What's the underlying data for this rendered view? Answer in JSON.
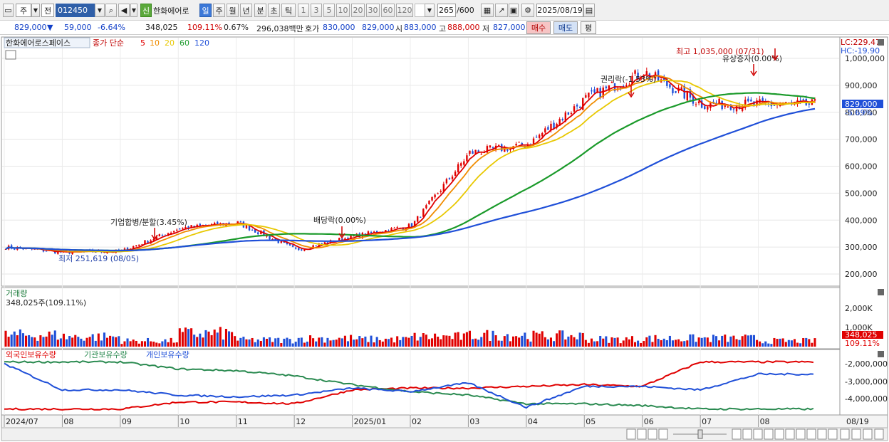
{
  "toolbar": {
    "market": "주",
    "prev": "전",
    "code": "012450",
    "badge": "신",
    "name": "한화에어로",
    "periods": [
      "일",
      "주",
      "월",
      "년",
      "분",
      "초",
      "틱"
    ],
    "intervals": [
      "1",
      "3",
      "5",
      "10",
      "20",
      "30",
      "60",
      "120"
    ],
    "count": "265",
    "count_max": "/600",
    "date": "2025/08/19"
  },
  "info": {
    "price": "829,000",
    "down_mark": "▼",
    "change": "59,000",
    "change_pct": "-6.64%",
    "volume": "348,025",
    "volume_ratio": "109.11%",
    "turnover": "0.67%",
    "amount": "296,038백만",
    "ask_label": "호가",
    "ask": "830,000",
    "bid": "829,000",
    "open_label": "시",
    "open": "883,000",
    "high_label": "고",
    "high": "888,000",
    "low_label": "저",
    "low": "827,000",
    "buy_label": "매수",
    "sell_label": "매도",
    "eval_label": "평"
  },
  "legend": {
    "stock_name": "한화에어로스페이스",
    "series_label": "종가 단순",
    "ma": [
      {
        "name": "5",
        "color": "#e00000"
      },
      {
        "name": "10",
        "color": "#f08c00"
      },
      {
        "name": "20",
        "color": "#e8c800"
      },
      {
        "name": "60",
        "color": "#1a9a2a"
      },
      {
        "name": "120",
        "color": "#1f4fd8"
      }
    ]
  },
  "annotations": {
    "high": "최고 1,035,000 (07/31)",
    "low": "최저 251,619 (08/05)",
    "merge": "기업합병/분할(3.45%)",
    "dividend": "배당락(0.00%)",
    "rights": "권리락(-1.53%)",
    "capital": "유상증자(0.00%)"
  },
  "price_axis": {
    "ticks": [
      "1,000,000",
      "900,000",
      "800,000",
      "700,000",
      "600,000",
      "500,000",
      "400,000",
      "300,000",
      "200,000"
    ],
    "lc": "LC:229.47",
    "hc": "HC:-19.90",
    "last_price": "829,000",
    "last_pct": "-5.69%"
  },
  "volume_pane": {
    "title": "거래량",
    "last_label": "348,025주(109.11%)",
    "ticks": [
      "2,000K",
      "1,000K"
    ],
    "last_value": "348,025",
    "last_pct": "109.11%"
  },
  "holdings_pane": {
    "series": [
      {
        "name": "외국인보유수량",
        "color": "#e00000"
      },
      {
        "name": "기관보유수량",
        "color": "#2a8a50"
      },
      {
        "name": "개인보유수량",
        "color": "#1f4fd8"
      }
    ],
    "ticks": [
      "-2,000,000",
      "-3,000,000",
      "-4,000,000"
    ]
  },
  "x_axis": {
    "labels": [
      "2024/07",
      "08",
      "09",
      "10",
      "11",
      "12",
      "2025/01",
      "02",
      "03",
      "04",
      "05",
      "06",
      "07",
      "08"
    ],
    "last_date": "08/19"
  },
  "chart_data": {
    "type": "candlestick",
    "x": [
      "2024/07",
      "08",
      "09",
      "10",
      "11",
      "12",
      "2025/01",
      "02",
      "03",
      "04",
      "05",
      "06",
      "07",
      "08"
    ],
    "close": [
      300000,
      280000,
      285000,
      370000,
      390000,
      290000,
      340000,
      380000,
      650000,
      680000,
      850000,
      950000,
      830000,
      829000
    ],
    "volume_k": [
      700,
      600,
      350,
      800,
      400,
      500,
      450,
      600,
      700,
      650,
      450,
      500,
      500,
      348
    ],
    "ylim": [
      180000,
      1060000
    ],
    "notes": {
      "high": 1035000,
      "low": 251619,
      "last": 829000
    }
  }
}
